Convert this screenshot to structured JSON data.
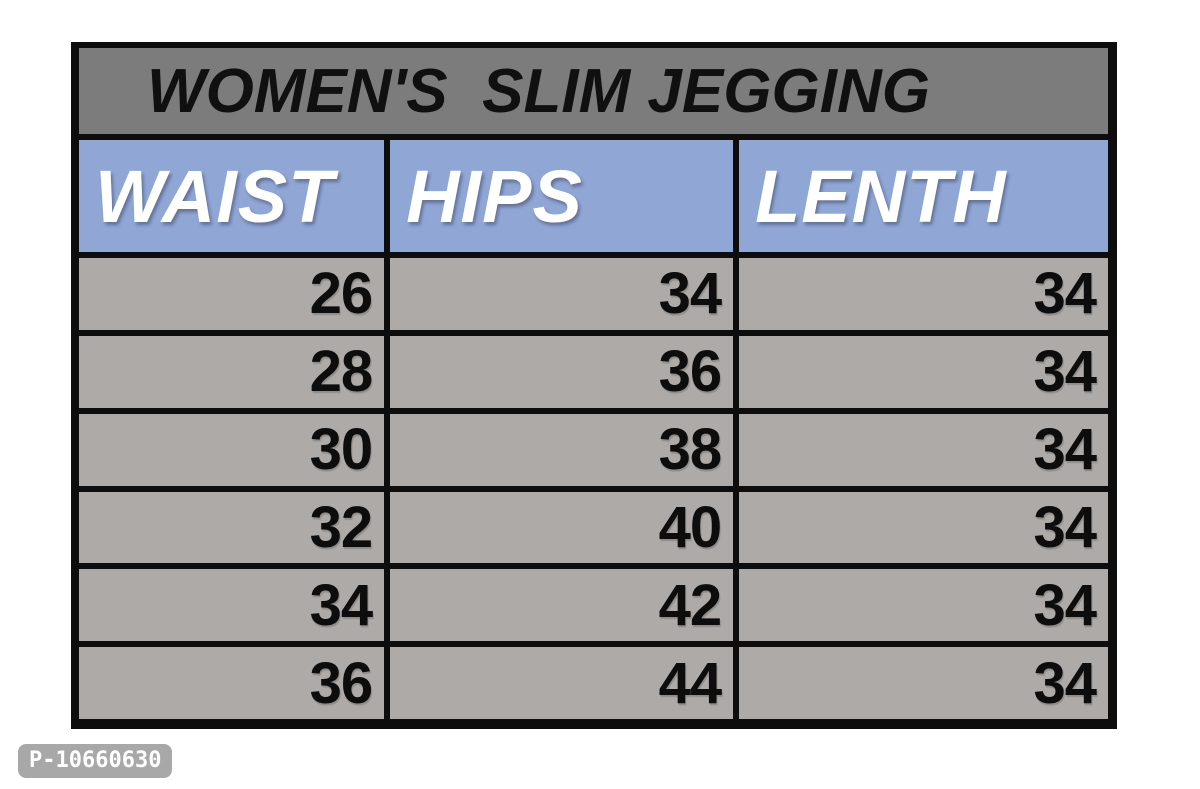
{
  "table": {
    "title": "WOMEN'S  SLIM JEGGING",
    "columns": [
      "WAIST",
      "HIPS",
      "LENTH"
    ],
    "rows": [
      [
        "26",
        "34",
        "34"
      ],
      [
        "28",
        "36",
        "34"
      ],
      [
        "30",
        "38",
        "34"
      ],
      [
        "32",
        "40",
        "34"
      ],
      [
        "34",
        "42",
        "34"
      ],
      [
        "36",
        "44",
        "34"
      ]
    ]
  },
  "watermark": {
    "text": "P-10660630"
  },
  "colors": {
    "page_bg": "#ffffff",
    "border": "#0d0d0d",
    "title_bg": "#7c7c7c",
    "title_text": "#101010",
    "header_bg": "#90a6d5",
    "header_text": "#ffffff",
    "cell_bg": "#aeaaa7",
    "cell_text": "#0d0d0d",
    "badge_bg": "#a8a8a8",
    "badge_text": "#ffffff"
  },
  "chart_data": {
    "type": "table",
    "title": "WOMEN'S SLIM JEGGING",
    "columns": [
      "WAIST",
      "HIPS",
      "LENTH"
    ],
    "rows": [
      [
        26,
        34,
        34
      ],
      [
        28,
        36,
        34
      ],
      [
        30,
        38,
        34
      ],
      [
        32,
        40,
        34
      ],
      [
        34,
        42,
        34
      ],
      [
        36,
        44,
        34
      ]
    ],
    "notes": "Size chart table; LENTH is the on-image spelling of LENGTH; all length values are 34"
  }
}
